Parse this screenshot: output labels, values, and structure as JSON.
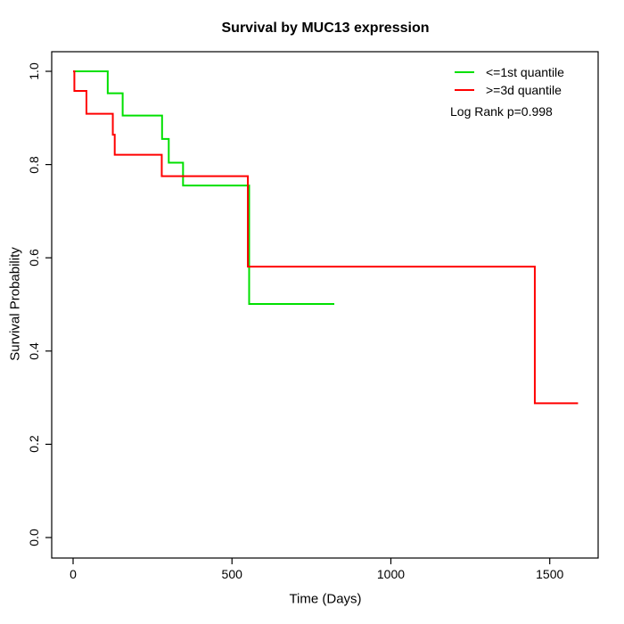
{
  "title": "Survival by MUC13 expression",
  "chart_data": {
    "type": "line",
    "subtype": "kaplan-meier-step",
    "title": "Survival by MUC13 expression",
    "xlabel": "Time (Days)",
    "ylabel": "Survival Probability",
    "xlim": [
      0,
      1600
    ],
    "ylim": [
      0.0,
      1.0
    ],
    "grid": false,
    "legend_position": "top-right",
    "x_ticks": [
      0,
      500,
      1000,
      1500
    ],
    "x_tick_labels": [
      "0",
      "500",
      "1000",
      "1500"
    ],
    "y_ticks": [
      0.0,
      0.2,
      0.4,
      0.6,
      0.8,
      1.0
    ],
    "y_tick_labels": [
      "0.0",
      "0.2",
      "0.4",
      "0.6",
      "0.8",
      "1.0"
    ],
    "series": [
      {
        "name": "<=1st quantile",
        "color": "#00E000",
        "steps": [
          [
            0,
            1.0
          ],
          [
            109,
            0.953
          ],
          [
            156,
            0.905
          ],
          [
            280,
            0.855
          ],
          [
            301,
            0.804
          ],
          [
            346,
            0.755
          ],
          [
            554,
            0.501
          ]
        ],
        "end_time": 822
      },
      {
        "name": ">=3d quantile",
        "color": "#FF0000",
        "steps": [
          [
            0,
            1.0
          ],
          [
            4,
            0.958
          ],
          [
            42,
            0.909
          ],
          [
            125,
            0.864
          ],
          [
            131,
            0.821
          ],
          [
            279,
            0.775
          ],
          [
            550,
            0.581
          ],
          [
            1453,
            0.288
          ]
        ],
        "end_time": 1589
      }
    ]
  },
  "legend": {
    "items": [
      {
        "label": "<=1st quantile",
        "color": "#00E000"
      },
      {
        "label": ">=3d quantile",
        "color": "#FF0000"
      }
    ],
    "note": "Log Rank p=0.998"
  },
  "axis_color": "#000000"
}
